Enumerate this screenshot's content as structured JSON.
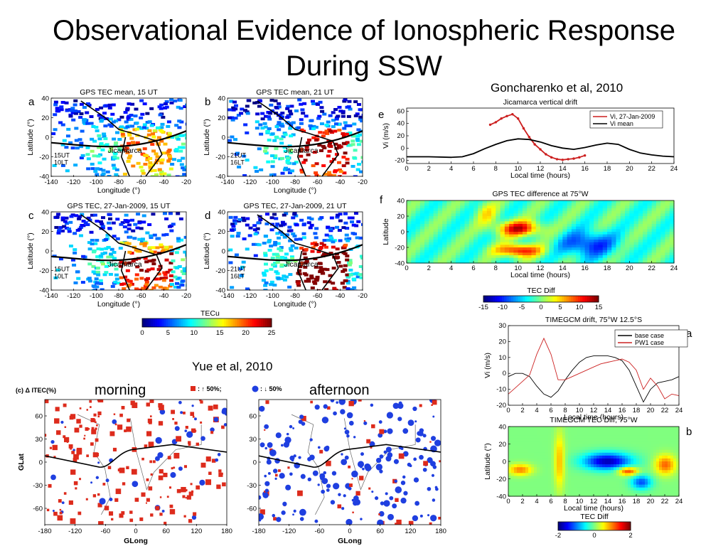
{
  "slide": {
    "title_line1": "Observational Evidence of Ionospheric Response",
    "title_line2": "During SSW",
    "citation_goncharenko": "Goncharenko et al, 2010",
    "citation_yue": "Yue et al, 2010",
    "label_morning": "morning",
    "label_afternoon": "afternoon"
  },
  "maps": {
    "xlabel": "Longitude (°)",
    "ylabel": "Latitude (°)",
    "x_ticks": [
      "-140",
      "-120",
      "-100",
      "-80",
      "-60",
      "-40",
      "-20"
    ],
    "y_ticks": [
      "40",
      "20",
      "0",
      "-20",
      "-40"
    ],
    "place": "Jicamarca",
    "panels": [
      {
        "letter": "a",
        "title": "GPS TEC mean, 15 UT",
        "ut": "15UT",
        "lt": "10LT"
      },
      {
        "letter": "b",
        "title": "GPS TEC mean, 21 UT",
        "ut": "21UT",
        "lt": "16LT"
      },
      {
        "letter": "c",
        "title": "GPS TEC, 27-Jan-2009, 15 UT",
        "ut": "15UT",
        "lt": "10LT"
      },
      {
        "letter": "d",
        "title": "GPS TEC, 27-Jan-2009, 21 UT",
        "ut": "21UT",
        "lt": "16LT"
      }
    ],
    "colorbar": {
      "label": "TECu",
      "ticks": [
        "0",
        "5",
        "10",
        "15",
        "20",
        "25"
      ]
    }
  },
  "panel_e": {
    "letter": "e",
    "title": "Jicamarca vertical drift",
    "ylabel": "Vi (m/s)",
    "xlabel": "Local time (hours)",
    "legend": [
      "Vi, 27-Jan-2009",
      "Vi mean"
    ],
    "y_ticks": [
      "60",
      "40",
      "20",
      "0",
      "-20"
    ],
    "x_ticks": [
      "0",
      "2",
      "4",
      "6",
      "8",
      "10",
      "12",
      "14",
      "16",
      "18",
      "20",
      "22",
      "24"
    ]
  },
  "panel_f": {
    "letter": "f",
    "title": "GPS TEC difference at 75°W",
    "ylabel": "Latitude",
    "xlabel": "Local time (hours)",
    "y_ticks": [
      "40",
      "20",
      "0",
      "-20",
      "-40"
    ],
    "x_ticks": [
      "0",
      "2",
      "4",
      "6",
      "8",
      "10",
      "12",
      "14",
      "16",
      "18",
      "20",
      "22",
      "24"
    ],
    "colorbar_label": "TEC Diff",
    "colorbar_ticks": [
      "-15",
      "-10",
      "-5",
      "0",
      "5",
      "10",
      "15"
    ]
  },
  "timegcm_a": {
    "letter": "a",
    "title": "TIMEGCM drift, 75°W 12.5°S",
    "ylabel": "Vi (m/s)",
    "xlabel": "Local time (hours)",
    "legend": [
      "base case",
      "PW1 case"
    ],
    "y_ticks": [
      "30",
      "20",
      "10",
      "0",
      "-10",
      "-20"
    ],
    "x_ticks": [
      "0",
      "2",
      "4",
      "6",
      "8",
      "10",
      "12",
      "14",
      "16",
      "18",
      "20",
      "22",
      "24"
    ]
  },
  "timegcm_b": {
    "letter": "b",
    "title": "TIMEGCM TEC Diff, 75°W",
    "ylabel": "Latitude (°)",
    "xlabel": "Local time (hours)",
    "y_ticks": [
      "40",
      "20",
      "0",
      "-20",
      "-40"
    ],
    "x_ticks": [
      "0",
      "2",
      "4",
      "6",
      "8",
      "10",
      "12",
      "14",
      "16",
      "18",
      "20",
      "22",
      "24"
    ],
    "colorbar_label": "TEC Diff",
    "colorbar_ticks": [
      "-2",
      "0",
      "2"
    ]
  },
  "itec": {
    "header": "(c) Δ ITEC(%)",
    "legend_up": ": ↑ 50%;",
    "legend_down": ": ↓ 50%",
    "xlabel": "GLong",
    "ylabel": "GLat",
    "x_ticks": [
      "-180",
      "-120",
      "-60",
      "0",
      "60",
      "120",
      "180"
    ],
    "y_ticks": [
      "60",
      "30",
      "0",
      "-30",
      "-60"
    ],
    "colors": {
      "increase": "#dd2b1c",
      "decrease": "#1f3fe0"
    }
  },
  "chart_data": [
    {
      "type": "line",
      "title": "Jicamarca vertical drift",
      "xlabel": "Local time (hours)",
      "ylabel": "Vi (m/s)",
      "xlim": [
        0,
        24
      ],
      "ylim": [
        -25,
        65
      ],
      "series": [
        {
          "name": "Vi, 27-Jan-2009",
          "color": "#cc1f1f",
          "x": [
            7.5,
            8,
            8.5,
            9,
            9.5,
            10,
            10.5,
            11,
            11.5,
            12,
            12.5,
            13,
            13.5,
            14,
            14.5,
            15,
            15.5,
            16
          ],
          "y": [
            38,
            42,
            48,
            52,
            55,
            48,
            32,
            18,
            6,
            -2,
            -10,
            -15,
            -18,
            -19,
            -18,
            -17,
            -15,
            -12
          ]
        },
        {
          "name": "Vi mean",
          "color": "#000000",
          "x": [
            0,
            2,
            4,
            5,
            6,
            7,
            8,
            9,
            10,
            11,
            12,
            13,
            14,
            15,
            16,
            17,
            18,
            19,
            20,
            21,
            22,
            23,
            24
          ],
          "y": [
            -14,
            -14,
            -15,
            -14,
            -9,
            -1,
            6,
            12,
            15,
            14,
            10,
            4,
            0,
            -2,
            1,
            5,
            8,
            6,
            -2,
            -8,
            -11,
            -13,
            -14
          ]
        }
      ]
    },
    {
      "type": "line",
      "title": "TIMEGCM drift, 75°W 12.5°S",
      "xlabel": "Local time (hours)",
      "ylabel": "Vi (m/s)",
      "xlim": [
        0,
        24
      ],
      "ylim": [
        -20,
        30
      ],
      "series": [
        {
          "name": "base case",
          "color": "#000000",
          "x": [
            0,
            1,
            2,
            3,
            4,
            5,
            6,
            7,
            8,
            9,
            10,
            11,
            12,
            13,
            14,
            15,
            16,
            17,
            18,
            19,
            20,
            21,
            22,
            23,
            24
          ],
          "y": [
            -2,
            0,
            0,
            -2,
            -8,
            -13,
            -15,
            -11,
            -4,
            2,
            7,
            10,
            11,
            11,
            11,
            10,
            8,
            2,
            -8,
            -18,
            -10,
            -6,
            -5,
            -4,
            -2
          ]
        },
        {
          "name": "PW1 case",
          "color": "#cc2222",
          "x": [
            0,
            1,
            2,
            3,
            4,
            5,
            6,
            7,
            8,
            9,
            10,
            11,
            12,
            13,
            14,
            15,
            16,
            17,
            18,
            19,
            20,
            21,
            22,
            23,
            24
          ],
          "y": [
            -13,
            -9,
            -5,
            -1,
            12,
            22,
            12,
            -4,
            -4,
            -2,
            0,
            2,
            4,
            6,
            7,
            8,
            9,
            7,
            2,
            -10,
            -3,
            -8,
            -16,
            -13,
            -14
          ]
        }
      ]
    }
  ]
}
